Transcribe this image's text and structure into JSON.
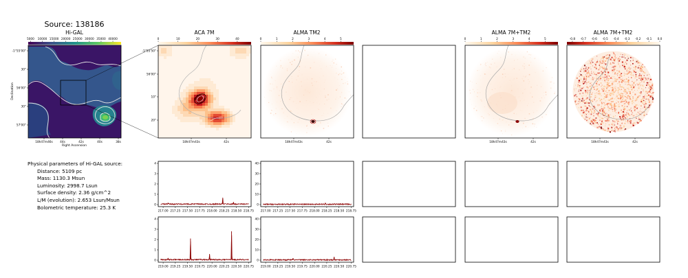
{
  "source_title": "Source: 138186",
  "panels": {
    "higal": {
      "title": "Hi-GAL",
      "xlabel": "Right Ascension",
      "ylabel": "Declination",
      "cbar_ticks": [
        "5000",
        "10000",
        "15000",
        "20000",
        "25000",
        "30000",
        "35000",
        "40000"
      ],
      "cbar_range": [
        4000,
        43500
      ],
      "x_ticks": [
        "18h47m46s",
        "44s",
        "42s",
        "40s",
        "38s"
      ],
      "y_ticks": [
        "-1°55'00\"",
        "30\"",
        "56'00\"",
        "30\"",
        "57'00\""
      ]
    },
    "aca7m": {
      "title": "ACA 7M",
      "cbar_ticks": [
        "0",
        "10",
        "20",
        "30",
        "40"
      ],
      "cbar_range": [
        0,
        47
      ],
      "x_ticks": [
        "18h47m43s",
        "42s"
      ],
      "y_ticks": [
        "-1°55'50\"",
        "56'00\"",
        "10\"",
        "20\""
      ]
    },
    "almatm2": {
      "title": "ALMA TM2",
      "cbar_ticks": [
        "0",
        "1",
        "2",
        "3",
        "4",
        "5"
      ],
      "cbar_range": [
        0,
        5.8
      ],
      "x_ticks": [
        "18h47m43s",
        "42s"
      ]
    },
    "alma7mtm2": {
      "title": "ALMA 7M+TM2",
      "cbar_ticks": [
        "0",
        "1",
        "2",
        "3",
        "4",
        "5"
      ],
      "cbar_range": [
        0,
        5.8
      ],
      "x_ticks": [
        "18h47m43s",
        "42s"
      ]
    },
    "alma7mtm2_ratio": {
      "title": "ALMA 7M+TM2",
      "cbar_ticks": [
        "-0.8",
        "-0.7",
        "-0.6",
        "-0.5",
        "-0.4",
        "-0.3",
        "-0.2",
        "-0.1",
        "0.0"
      ],
      "cbar_range": [
        -0.85,
        0.0
      ],
      "x_ticks": [
        "18h47m43s",
        "42s"
      ]
    }
  },
  "params": {
    "heading": "Physical parameters of Hi-GAL source:",
    "distance": "Distance: 5109 pc",
    "mass": "Mass: 1130.3 Msun",
    "luminosity": "Luminosity: 2998.7 Lsun",
    "surface_density": "Surface density: 2.36 g/cm^2",
    "lm": "L/M (evolution): 2.653 Lsun/Msun",
    "tbol": "Bolometric temperature: 25.3 K"
  },
  "chart_data": [
    {
      "type": "line",
      "name_ref": "aca7m-spectrum-lower-sideband",
      "x_range": [
        216.9,
        218.8
      ],
      "y_range": [
        -0.2,
        4.2
      ],
      "x_ticks": [
        "217.00",
        "217.25",
        "217.50",
        "217.75",
        "218.00",
        "218.25",
        "218.50",
        "218.75"
      ],
      "y_ticks": [
        "0",
        "1",
        "2",
        "3",
        "4"
      ],
      "baseline": 0.05,
      "peaks": [
        [
          218.22,
          0.62
        ],
        [
          218.44,
          0.18
        ],
        [
          217.1,
          0.12
        ]
      ]
    },
    {
      "type": "line",
      "name_ref": "almatm2-spectrum-lower-sideband",
      "x_range": [
        216.9,
        218.8
      ],
      "y_range": [
        -2,
        42
      ],
      "x_ticks": [
        "217.00",
        "217.25",
        "217.50",
        "217.75",
        "218.00",
        "218.25",
        "218.50",
        "218.75"
      ],
      "y_ticks": [
        "0",
        "10",
        "20",
        "30",
        "40"
      ],
      "baseline": 0.3,
      "peaks": [
        [
          218.22,
          1.2
        ],
        [
          217.6,
          0.6
        ]
      ]
    },
    {
      "type": "line",
      "name_ref": "aca7m-spectrum-upper-sideband",
      "x_range": [
        218.9,
        220.8
      ],
      "y_range": [
        -0.2,
        4.2
      ],
      "x_ticks": [
        "219.00",
        "219.25",
        "219.50",
        "219.75",
        "220.00",
        "220.25",
        "220.50",
        "220.75"
      ],
      "y_ticks": [
        "0",
        "1",
        "2",
        "3",
        "4"
      ],
      "baseline": 0.05,
      "peaks": [
        [
          219.56,
          2.05
        ],
        [
          219.95,
          0.55
        ],
        [
          220.4,
          2.75
        ],
        [
          219.1,
          0.12
        ]
      ]
    },
    {
      "type": "line",
      "name_ref": "almatm2-spectrum-upper-sideband",
      "x_range": [
        218.9,
        220.8
      ],
      "y_range": [
        -2,
        42
      ],
      "x_ticks": [
        "219.00",
        "219.25",
        "219.50",
        "219.75",
        "220.00",
        "220.25",
        "220.50",
        "220.75"
      ],
      "y_ticks": [
        "0",
        "10",
        "20",
        "30",
        "40"
      ],
      "baseline": 0.3,
      "peaks": [
        [
          220.4,
          2.8
        ],
        [
          219.56,
          1.5
        ]
      ]
    }
  ]
}
